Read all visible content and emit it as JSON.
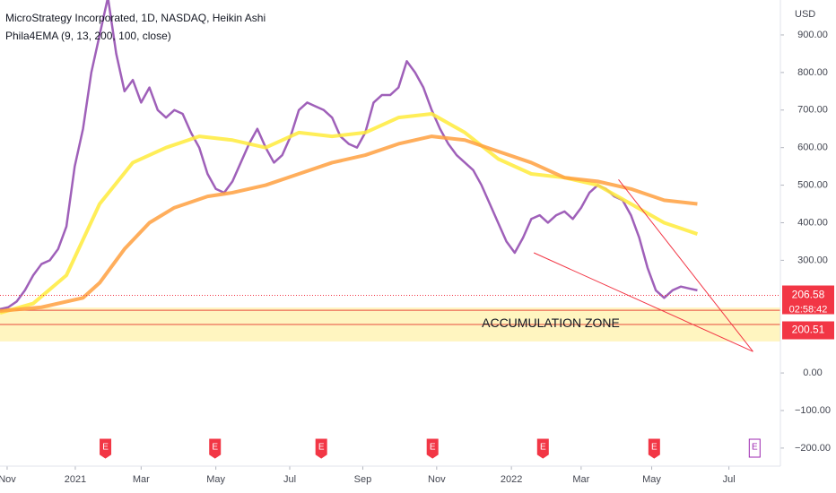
{
  "chart_data": {
    "type": "line",
    "title": "MicroStrategy Incorporated, 1D, NASDAQ, Heikin Ashi",
    "subtitle": "Phila4EMA (9, 13, 200, 100, close)",
    "currency": "USD",
    "xlim": [
      0,
      94
    ],
    "ylim": [
      -248,
      993
    ],
    "xticks": [
      {
        "value": 0.86,
        "label": "Nov"
      },
      {
        "value": 9.07,
        "label": "2021"
      },
      {
        "value": 17.0,
        "label": "Mar"
      },
      {
        "value": 26.0,
        "label": "May"
      },
      {
        "value": 34.9,
        "label": "Jul"
      },
      {
        "value": 43.7,
        "label": "Sep"
      },
      {
        "value": 52.6,
        "label": "Nov"
      },
      {
        "value": 61.6,
        "label": "2022"
      },
      {
        "value": 70.0,
        "label": "Mar"
      },
      {
        "value": 78.5,
        "label": "May"
      },
      {
        "value": 87.8,
        "label": "Jul"
      }
    ],
    "yticks": [
      {
        "value": 900,
        "label": "900.00"
      },
      {
        "value": 800,
        "label": "800.00"
      },
      {
        "value": 700,
        "label": "700.00"
      },
      {
        "value": 600,
        "label": "600.00"
      },
      {
        "value": 500,
        "label": "500.00"
      },
      {
        "value": 400,
        "label": "400.00"
      },
      {
        "value": 300,
        "label": "300.00"
      },
      {
        "value": 0,
        "label": "0.00"
      },
      {
        "value": -100,
        "label": "−100.00"
      },
      {
        "value": -200,
        "label": "−200.00"
      }
    ],
    "series": [
      {
        "color": "#8e44ad",
        "x": [
          0,
          1,
          2,
          3,
          4,
          5,
          6,
          7,
          8,
          9,
          10,
          11,
          12,
          13,
          14,
          15,
          16,
          17,
          18,
          19,
          20,
          21,
          22,
          23,
          24,
          25,
          26,
          27,
          28,
          29,
          30,
          31,
          32,
          33,
          34,
          35,
          36,
          37,
          38,
          39,
          40,
          41,
          42,
          43,
          44,
          45,
          46,
          47,
          48,
          49,
          50,
          51,
          52,
          53,
          54,
          55,
          56,
          57,
          58,
          59,
          60,
          61,
          62,
          63,
          64,
          65,
          66,
          67,
          68,
          69,
          70,
          71,
          72,
          73,
          74,
          75,
          76,
          77,
          78,
          79,
          80,
          81,
          82,
          83,
          84
        ],
        "values": [
          170,
          175,
          190,
          220,
          260,
          290,
          300,
          330,
          390,
          550,
          650,
          800,
          900,
          1000,
          850,
          750,
          780,
          720,
          760,
          700,
          680,
          700,
          690,
          640,
          600,
          530,
          490,
          480,
          510,
          560,
          610,
          650,
          600,
          560,
          580,
          630,
          700,
          720,
          710,
          700,
          680,
          630,
          610,
          600,
          640,
          720,
          740,
          740,
          760,
          830,
          800,
          760,
          700,
          650,
          610,
          580,
          560,
          540,
          500,
          450,
          400,
          350,
          320,
          360,
          410,
          420,
          400,
          420,
          430,
          410,
          440,
          480,
          500,
          490,
          470,
          460,
          420,
          360,
          280,
          220,
          200,
          220,
          230,
          225,
          220
        ]
      },
      {
        "color": "#ffeb3b",
        "x": [
          0,
          4,
          8,
          12,
          16,
          20,
          24,
          28,
          32,
          36,
          40,
          44,
          48,
          52,
          56,
          60,
          64,
          68,
          72,
          76,
          80,
          84
        ],
        "values": [
          160,
          185,
          260,
          450,
          560,
          600,
          630,
          620,
          600,
          640,
          630,
          640,
          680,
          690,
          640,
          570,
          530,
          520,
          500,
          450,
          400,
          370
        ]
      },
      {
        "color": "#ffa040",
        "x": [
          0,
          5,
          10,
          12,
          15,
          18,
          21,
          25,
          28,
          32,
          36,
          40,
          44,
          48,
          52,
          56,
          60,
          64,
          68,
          72,
          76,
          80,
          84
        ],
        "values": [
          165,
          175,
          200,
          240,
          330,
          400,
          440,
          470,
          480,
          500,
          530,
          560,
          580,
          610,
          630,
          620,
          590,
          560,
          520,
          510,
          490,
          460,
          450
        ]
      }
    ],
    "zone": {
      "label": "ACCUMULATION ZONE",
      "range": [
        84,
        174
      ],
      "lines": [
        167,
        129
      ],
      "color": "#fff3b0"
    },
    "trendlines": [
      {
        "x": [
          64.3,
          90.7
        ],
        "values": [
          320,
          57
        ]
      },
      {
        "x": [
          74.5,
          90.7
        ],
        "values": [
          515,
          57
        ]
      }
    ],
    "last_price": {
      "value": 206.58,
      "label": "206.58",
      "countdown": "02:58:42"
    },
    "ema_label": {
      "value": 200.51,
      "label": "200.51"
    },
    "earnings": {
      "label": "E",
      "x": [
        12.7,
        25.9,
        38.7,
        52.1,
        65.4,
        78.8,
        90.9
      ]
    }
  }
}
